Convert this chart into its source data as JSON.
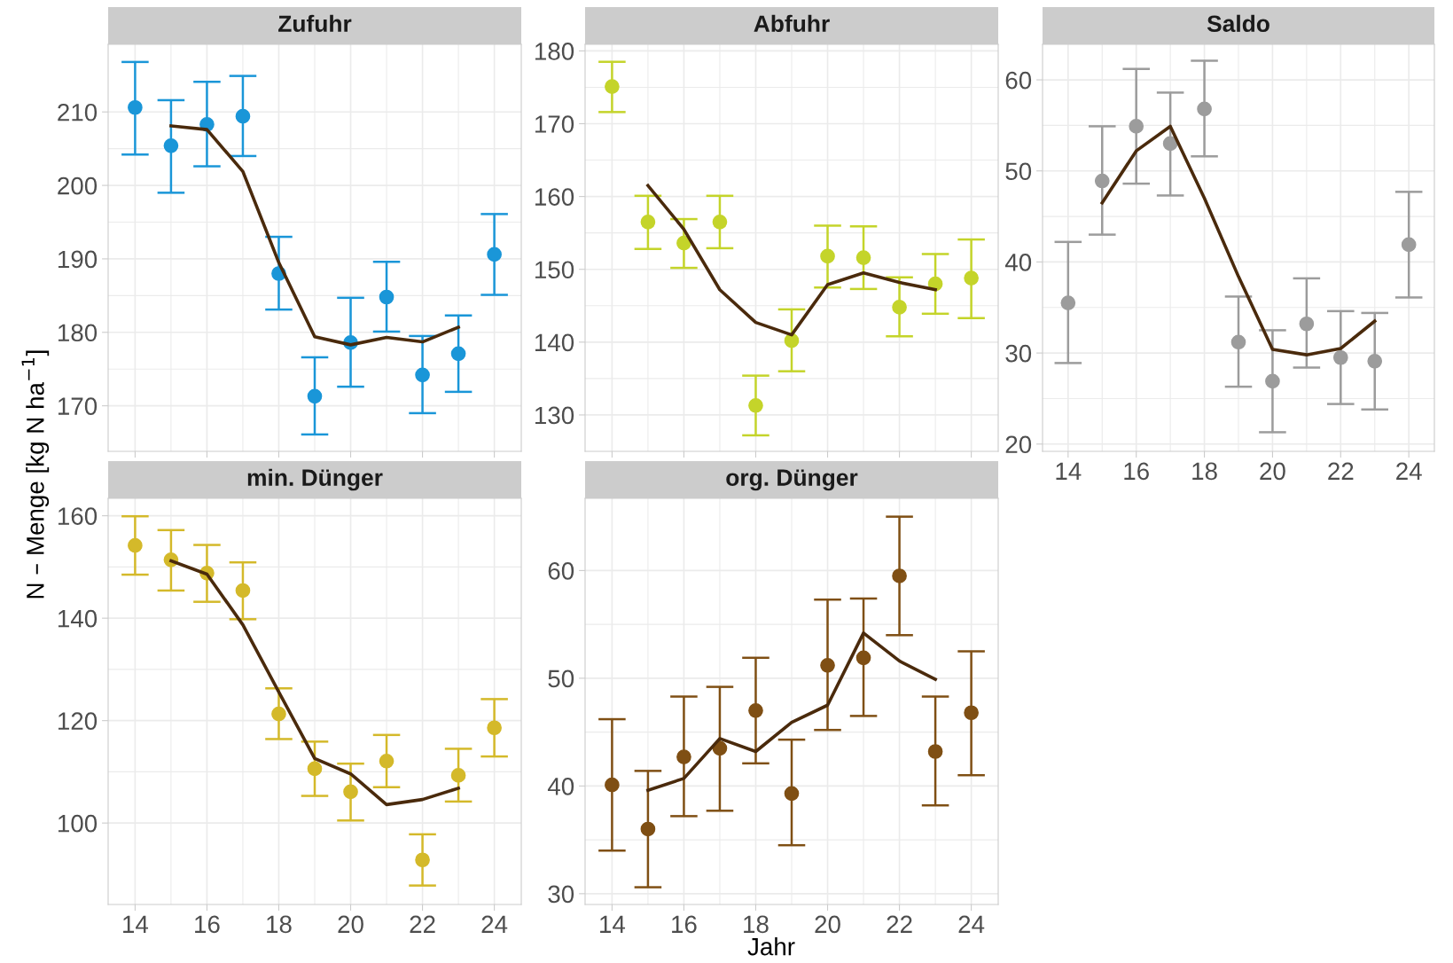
{
  "chart_data": [
    {
      "type": "scatter",
      "title": "Zufuhr",
      "ylabel": "N – Menge [kg N ha$^{−1}$]",
      "x": [
        14,
        15,
        16,
        17,
        18,
        19,
        20,
        21,
        22,
        23,
        24
      ],
      "xlim": [
        13.25,
        24.75
      ],
      "xticks": [
        14,
        16,
        18,
        20,
        22,
        24
      ],
      "ylim": [
        163.8,
        219.2
      ],
      "yticks": [
        170,
        180,
        190,
        200,
        210
      ],
      "tick_labels": "y",
      "grid": true,
      "series": [
        {
          "marker": "circle",
          "color": "#1a96d8",
          "values": [
            210.6,
            205.4,
            208.3,
            209.4,
            188.0,
            171.3,
            178.6,
            184.8,
            174.2,
            177.1,
            190.6
          ],
          "errors": [
            [
              204.2,
              216.8
            ],
            [
              199.0,
              211.6
            ],
            [
              202.6,
              214.1
            ],
            [
              204.0,
              214.9
            ],
            [
              183.1,
              193.0
            ],
            [
              166.1,
              176.6
            ],
            [
              172.6,
              184.7
            ],
            [
              180.1,
              189.6
            ],
            [
              169.0,
              179.5
            ],
            [
              171.9,
              182.3
            ],
            [
              185.1,
              196.1
            ]
          ]
        },
        {
          "type": "line",
          "color": "#4a2a0c",
          "x": [
            15,
            16,
            17,
            18,
            19,
            20,
            21,
            22,
            23
          ],
          "values": [
            208.1,
            207.6,
            201.9,
            189.5,
            179.4,
            178.3,
            179.3,
            178.7,
            180.7
          ]
        }
      ]
    },
    {
      "type": "scatter",
      "title": "Abfuhr",
      "x": [
        14,
        15,
        16,
        17,
        18,
        19,
        20,
        21,
        22,
        23,
        24
      ],
      "xlim": [
        13.25,
        24.75
      ],
      "xticks": [
        14,
        16,
        18,
        20,
        22,
        24
      ],
      "ylim": [
        125.0,
        180.9
      ],
      "yticks": [
        130,
        140,
        150,
        160,
        170,
        180
      ],
      "tick_labels": "y",
      "grid": true,
      "series": [
        {
          "marker": "circle",
          "color": "#c4d42a",
          "values": [
            175.1,
            156.5,
            153.6,
            156.5,
            131.3,
            140.2,
            151.8,
            151.6,
            144.8,
            148.0,
            148.8
          ],
          "errors": [
            [
              171.6,
              178.5
            ],
            [
              152.8,
              160.1
            ],
            [
              150.2,
              156.9
            ],
            [
              152.9,
              160.1
            ],
            [
              127.2,
              135.4
            ],
            [
              136.0,
              144.5
            ],
            [
              147.5,
              156.0
            ],
            [
              147.3,
              155.9
            ],
            [
              140.8,
              148.9
            ],
            [
              143.9,
              152.1
            ],
            [
              143.3,
              154.1
            ]
          ]
        },
        {
          "type": "line",
          "color": "#4a2a0c",
          "x": [
            15,
            16,
            17,
            18,
            19,
            20,
            21,
            22,
            23
          ],
          "values": [
            161.5,
            155.5,
            147.2,
            142.7,
            141.0,
            147.9,
            149.5,
            148.2,
            147.2
          ]
        }
      ]
    },
    {
      "type": "scatter",
      "title": "Saldo",
      "x": [
        14,
        15,
        16,
        17,
        18,
        19,
        20,
        21,
        22,
        23,
        24
      ],
      "xlim": [
        13.25,
        24.75
      ],
      "xticks": [
        14,
        16,
        18,
        20,
        22,
        24
      ],
      "ylim": [
        19.2,
        63.9
      ],
      "yticks": [
        20,
        30,
        40,
        50,
        60
      ],
      "grid": true,
      "series": [
        {
          "marker": "circle",
          "color": "#9c9c9c",
          "values": [
            35.5,
            48.9,
            54.9,
            53.0,
            56.8,
            31.2,
            26.9,
            33.2,
            29.5,
            29.1,
            41.9
          ],
          "errors": [
            [
              28.9,
              42.2
            ],
            [
              43.0,
              54.9
            ],
            [
              48.6,
              61.2
            ],
            [
              47.3,
              58.6
            ],
            [
              51.6,
              62.1
            ],
            [
              26.3,
              36.2
            ],
            [
              21.3,
              32.5
            ],
            [
              28.4,
              38.2
            ],
            [
              24.4,
              34.6
            ],
            [
              23.8,
              34.4
            ],
            [
              36.1,
              47.7
            ]
          ]
        },
        {
          "type": "line",
          "color": "#4a2a0c",
          "x": [
            15,
            16,
            17,
            18,
            19,
            20,
            21,
            22,
            23
          ],
          "values": [
            46.5,
            52.2,
            54.9,
            47.0,
            38.4,
            30.4,
            29.8,
            30.5,
            33.5
          ]
        }
      ]
    },
    {
      "type": "scatter",
      "title": "min. Dünger",
      "x": [
        14,
        15,
        16,
        17,
        18,
        19,
        20,
        21,
        22,
        23,
        24
      ],
      "xlim": [
        13.25,
        24.75
      ],
      "xticks": [
        14,
        16,
        18,
        20,
        22,
        24
      ],
      "ylim": [
        84.1,
        163.4
      ],
      "yticks": [
        100,
        120,
        140,
        160
      ],
      "grid": true,
      "series": [
        {
          "marker": "circle",
          "color": "#d4b92a",
          "values": [
            154.2,
            151.4,
            148.8,
            145.4,
            121.3,
            110.6,
            106.1,
            112.1,
            92.8,
            109.3,
            118.6
          ],
          "errors": [
            [
              148.5,
              159.9
            ],
            [
              145.4,
              157.2
            ],
            [
              143.2,
              154.3
            ],
            [
              139.8,
              150.9
            ],
            [
              116.4,
              126.3
            ],
            [
              105.3,
              115.9
            ],
            [
              100.5,
              111.6
            ],
            [
              107.0,
              117.2
            ],
            [
              87.8,
              97.8
            ],
            [
              104.2,
              114.5
            ],
            [
              113.0,
              124.2
            ]
          ]
        },
        {
          "type": "line",
          "color": "#4a2a0c",
          "x": [
            15,
            16,
            17,
            18,
            19,
            20,
            21,
            22,
            23
          ],
          "values": [
            151.2,
            148.6,
            138.7,
            125.6,
            112.6,
            109.6,
            103.6,
            104.6,
            106.8
          ]
        }
      ]
    },
    {
      "type": "scatter",
      "title": "org. Dünger",
      "xlabel": "Jahr",
      "x": [
        14,
        15,
        16,
        17,
        18,
        19,
        20,
        21,
        22,
        23,
        24
      ],
      "xlim": [
        13.25,
        24.75
      ],
      "xticks": [
        14,
        16,
        18,
        20,
        22,
        24
      ],
      "ylim": [
        29.0,
        66.7
      ],
      "yticks": [
        30,
        40,
        50,
        60
      ],
      "grid": true,
      "series": [
        {
          "marker": "circle",
          "color": "#7f4f14",
          "values": [
            40.1,
            36.0,
            42.7,
            43.5,
            47.0,
            39.3,
            51.2,
            51.9,
            59.5,
            43.2,
            46.8
          ],
          "errors": [
            [
              34.0,
              46.2
            ],
            [
              30.6,
              41.4
            ],
            [
              37.2,
              48.3
            ],
            [
              37.7,
              49.2
            ],
            [
              42.1,
              51.9
            ],
            [
              34.5,
              44.3
            ],
            [
              45.2,
              57.3
            ],
            [
              46.5,
              57.4
            ],
            [
              54.0,
              65.0
            ],
            [
              38.2,
              48.3
            ],
            [
              41.0,
              52.5
            ]
          ]
        },
        {
          "type": "line",
          "color": "#4a2a0c",
          "x": [
            15,
            16,
            17,
            18,
            19,
            20,
            21,
            22,
            23
          ],
          "values": [
            39.6,
            40.7,
            44.4,
            43.2,
            45.9,
            47.5,
            54.2,
            51.6,
            49.9
          ]
        }
      ]
    }
  ]
}
